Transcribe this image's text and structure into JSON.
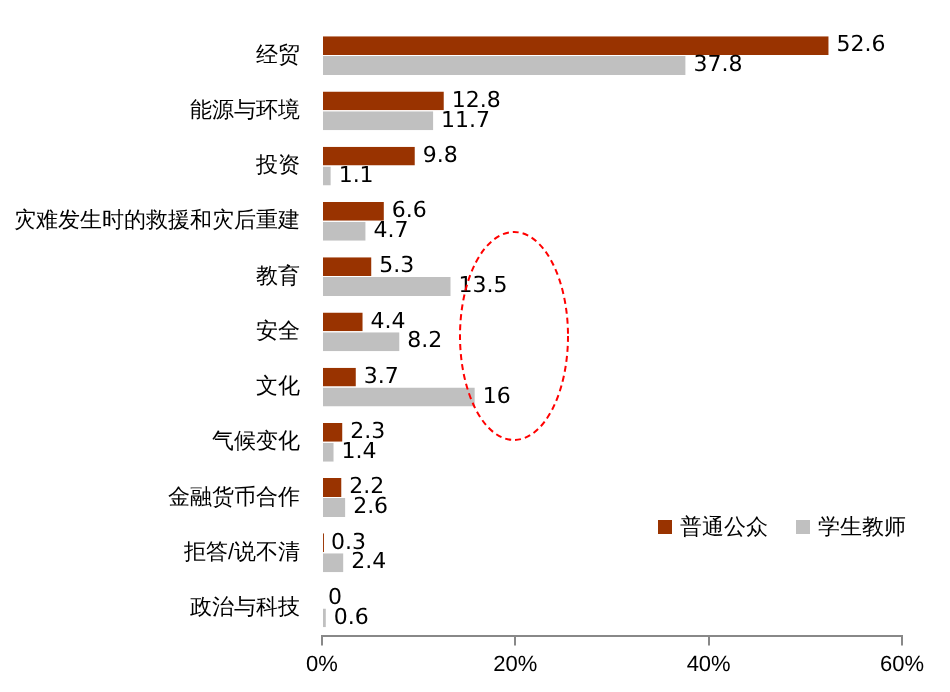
{
  "chart_data": {
    "type": "bar",
    "orientation": "horizontal",
    "categories": [
      "经贸",
      "能源与环境",
      "投资",
      "灾难发生时的救援和灾后重建",
      "教育",
      "安全",
      "文化",
      "气候变化",
      "金融货币合作",
      "拒答/说不清",
      "政治与科技"
    ],
    "series": [
      {
        "name": "普通公众",
        "color": "#993300",
        "values": [
          52.6,
          12.8,
          9.8,
          6.6,
          5.3,
          4.4,
          3.7,
          2.3,
          2.2,
          0.3,
          0
        ]
      },
      {
        "name": "学生教师",
        "color": "#c0c0c0",
        "values": [
          37.8,
          11.7,
          1.1,
          4.7,
          13.5,
          8.2,
          16,
          1.4,
          2.6,
          2.4,
          0.6
        ]
      }
    ],
    "xlim": [
      0,
      60
    ],
    "xticks": [
      {
        "value": 0,
        "label": "0%"
      },
      {
        "value": 20,
        "label": "20%"
      },
      {
        "value": 40,
        "label": "40%"
      },
      {
        "value": 60,
        "label": "60%"
      }
    ],
    "data_labels": true,
    "legend": "bottom right",
    "grid": false
  }
}
